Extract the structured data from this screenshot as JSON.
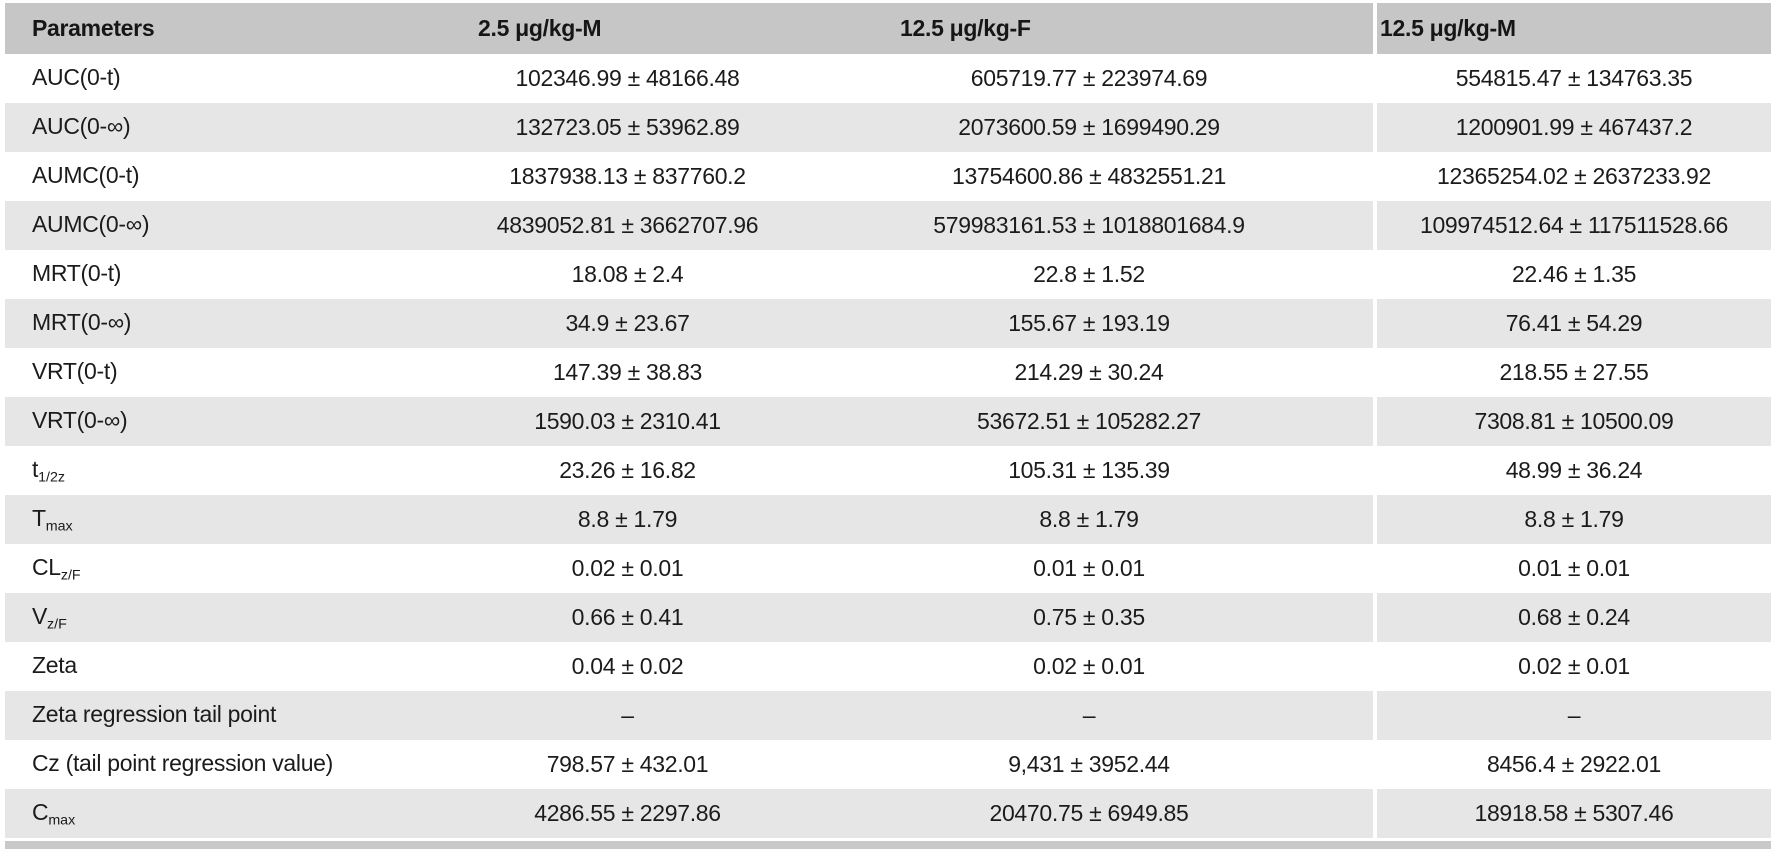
{
  "table": {
    "columns": [
      "Parameters",
      "2.5 μg/kg-M",
      "12.5 μg/kg-F",
      "12.5 μg/kg-M"
    ],
    "rows": [
      {
        "label": "AUC(0-t)",
        "sub": "",
        "values": [
          "102346.99 ± 48166.48",
          "605719.77 ± 223974.69",
          "554815.47 ± 134763.35"
        ]
      },
      {
        "label": "AUC(0-∞)",
        "sub": "",
        "values": [
          "132723.05 ± 53962.89",
          "2073600.59 ± 1699490.29",
          "1200901.99 ± 467437.2"
        ]
      },
      {
        "label": "AUMC(0-t)",
        "sub": "",
        "values": [
          "1837938.13 ± 837760.2",
          "13754600.86 ± 4832551.21",
          "12365254.02 ± 2637233.92"
        ]
      },
      {
        "label": "AUMC(0-∞)",
        "sub": "",
        "values": [
          "4839052.81 ± 3662707.96",
          "579983161.53 ± 1018801684.9",
          "109974512.64 ± 117511528.66"
        ]
      },
      {
        "label": "MRT(0-t)",
        "sub": "",
        "values": [
          "18.08 ± 2.4",
          "22.8 ± 1.52",
          "22.46 ± 1.35"
        ]
      },
      {
        "label": "MRT(0-∞)",
        "sub": "",
        "values": [
          "34.9 ± 23.67",
          "155.67 ± 193.19",
          "76.41 ± 54.29"
        ]
      },
      {
        "label": "VRT(0-t)",
        "sub": "",
        "values": [
          "147.39 ± 38.83",
          "214.29 ± 30.24",
          "218.55 ± 27.55"
        ]
      },
      {
        "label": "VRT(0-∞)",
        "sub": "",
        "values": [
          "1590.03 ± 2310.41",
          "53672.51 ± 105282.27",
          "7308.81 ± 10500.09"
        ]
      },
      {
        "label": "t",
        "sub": "1/2z",
        "values": [
          "23.26 ± 16.82",
          "105.31 ± 135.39",
          "48.99 ± 36.24"
        ]
      },
      {
        "label": "T",
        "sub": "max",
        "values": [
          "8.8 ± 1.79",
          "8.8 ± 1.79",
          "8.8 ± 1.79"
        ]
      },
      {
        "label": "CL",
        "sub": "z/F",
        "values": [
          "0.02 ± 0.01",
          "0.01 ± 0.01",
          "0.01 ± 0.01"
        ]
      },
      {
        "label": "V",
        "sub": "z/F",
        "values": [
          "0.66 ± 0.41",
          "0.75 ± 0.35",
          "0.68 ± 0.24"
        ]
      },
      {
        "label": "Zeta",
        "sub": "",
        "values": [
          "0.04 ± 0.02",
          "0.02 ± 0.01",
          "0.02 ± 0.01"
        ]
      },
      {
        "label": "Zeta regression tail point",
        "sub": "",
        "values": [
          "–",
          "–",
          "–"
        ]
      },
      {
        "label": "Cz (tail point regression value)",
        "sub": "",
        "values": [
          "798.57 ± 432.01",
          "9,431 ± 3952.44",
          "8456.4 ± 2922.01"
        ]
      },
      {
        "label": "C",
        "sub": "max",
        "values": [
          "4286.55 ± 2297.86",
          "20470.75 ± 6949.85",
          "18918.58 ± 5307.46"
        ]
      }
    ]
  },
  "colors": {
    "header_bg": "#c6c6c6",
    "row_alt_bg": "#e6e6e6",
    "bottom_bar": "#c9c9c9",
    "text": "#1b1b1b"
  }
}
